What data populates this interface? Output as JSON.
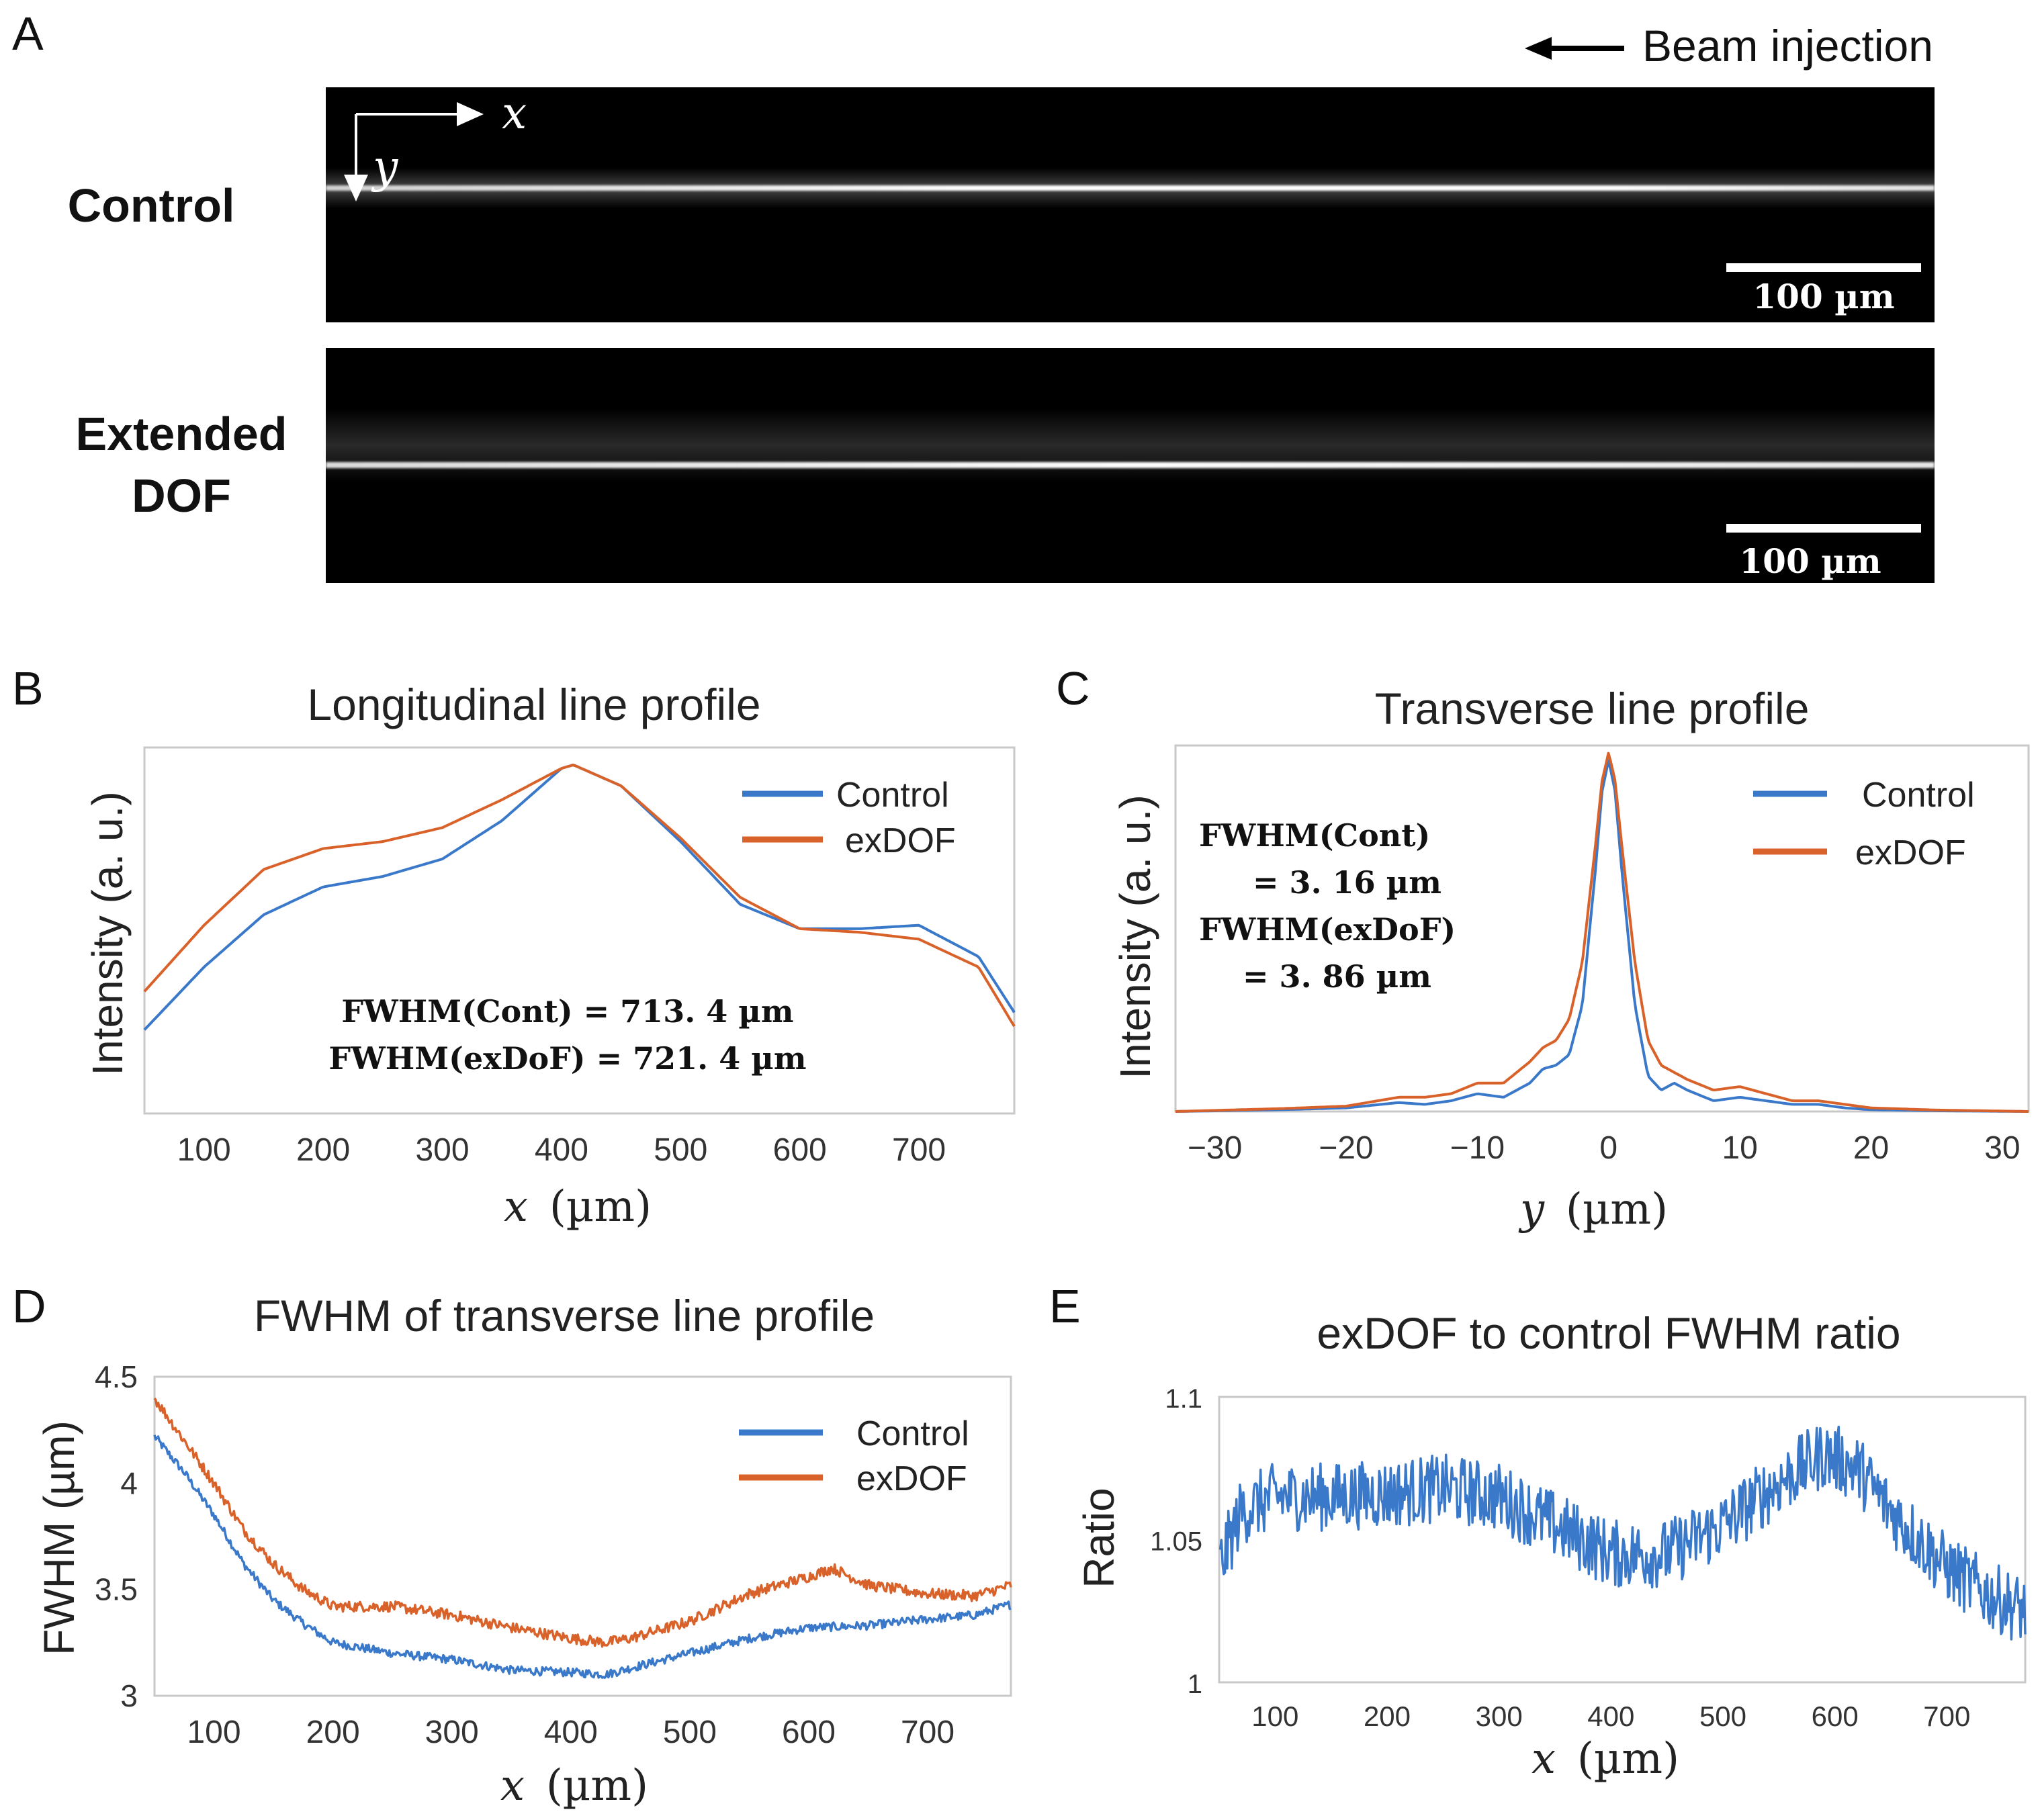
{
  "panel_a": {
    "letter": "A",
    "beam_injection_label": "Beam injection",
    "rows": [
      {
        "label_lines": [
          "Control"
        ],
        "scale_label": "100 µm"
      },
      {
        "label_lines": [
          "Extended",
          "DOF"
        ],
        "scale_label": "100 µm"
      }
    ],
    "axis_x_label": "x",
    "axis_y_label": "y",
    "arrow_icon": "left-arrow-icon"
  },
  "colors": {
    "control": "#3a78c9",
    "exdof": "#d9622a",
    "frame": "#c8c8c8",
    "tick_text": "#333333"
  },
  "chart_data": [
    {
      "id": "B",
      "letter": "B",
      "type": "line",
      "title": "Longitudinal line profile",
      "xlabel_var": "x",
      "xlabel_unit": "(µm)",
      "ylabel": "Intensity (a. u.)",
      "xlim": [
        50,
        780
      ],
      "ylim": [
        0,
        1.05
      ],
      "xticks": [
        100,
        200,
        300,
        400,
        500,
        600,
        700
      ],
      "yticks": [],
      "legend_position": "top-right",
      "annotations": [
        "FWHM(Cont) = 713. 4 µm",
        "FWHM(exDoF) = 721. 4 µm"
      ],
      "series": [
        {
          "name": "Control",
          "color_key": "control",
          "x": [
            50,
            100,
            150,
            200,
            250,
            300,
            350,
            400,
            410,
            450,
            500,
            550,
            600,
            650,
            700,
            750,
            780
          ],
          "y": [
            0.24,
            0.42,
            0.57,
            0.65,
            0.68,
            0.73,
            0.84,
            0.99,
            1.0,
            0.94,
            0.78,
            0.6,
            0.53,
            0.53,
            0.54,
            0.45,
            0.29
          ]
        },
        {
          "name": "exDOF",
          "color_key": "exdof",
          "x": [
            50,
            100,
            150,
            200,
            250,
            300,
            350,
            400,
            410,
            450,
            500,
            550,
            600,
            650,
            700,
            750,
            780
          ],
          "y": [
            0.35,
            0.54,
            0.7,
            0.76,
            0.78,
            0.82,
            0.9,
            0.99,
            1.0,
            0.94,
            0.79,
            0.62,
            0.53,
            0.52,
            0.5,
            0.42,
            0.25
          ]
        }
      ]
    },
    {
      "id": "C",
      "letter": "C",
      "type": "line",
      "title": "Transverse line profile",
      "xlabel_var": "y",
      "xlabel_unit": "(µm)",
      "ylabel": "Intensity (a. u.)",
      "xlim": [
        -33,
        32
      ],
      "ylim": [
        0,
        1.03
      ],
      "xticks": [
        -30,
        -20,
        -10,
        0,
        10,
        20,
        30
      ],
      "xtick_labels": [
        "−30",
        "−20",
        "−10",
        "0",
        "10",
        "20",
        "30"
      ],
      "yticks": [],
      "legend_position": "top-right",
      "annotations": [
        "FWHM(Cont)",
        "= 3. 16 µm",
        "FWHM(exDoF)",
        "= 3. 86 µm"
      ],
      "series": [
        {
          "name": "Control",
          "color_key": "control",
          "x": [
            -33,
            -25,
            -20,
            -16,
            -14,
            -12,
            -10,
            -8,
            -6,
            -5,
            -4,
            -3,
            -2,
            -1,
            -0.5,
            0,
            0.5,
            1,
            2,
            3,
            4,
            5,
            6,
            8,
            10,
            12,
            14,
            16,
            18,
            20,
            25,
            32
          ],
          "y": [
            0.0,
            0.005,
            0.01,
            0.025,
            0.02,
            0.03,
            0.05,
            0.04,
            0.08,
            0.12,
            0.13,
            0.16,
            0.3,
            0.68,
            0.9,
            0.99,
            0.9,
            0.68,
            0.3,
            0.1,
            0.06,
            0.08,
            0.06,
            0.03,
            0.04,
            0.03,
            0.02,
            0.02,
            0.01,
            0.005,
            0.002,
            0.0
          ]
        },
        {
          "name": "exDOF",
          "color_key": "exdof",
          "x": [
            -33,
            -25,
            -20,
            -16,
            -14,
            -12,
            -10,
            -8,
            -6,
            -5,
            -4,
            -3,
            -2,
            -1,
            -0.5,
            0,
            0.5,
            1,
            2,
            3,
            4,
            5,
            6,
            8,
            10,
            12,
            14,
            16,
            18,
            20,
            25,
            32
          ],
          "y": [
            0.0,
            0.008,
            0.015,
            0.04,
            0.04,
            0.05,
            0.08,
            0.08,
            0.14,
            0.18,
            0.2,
            0.26,
            0.42,
            0.75,
            0.93,
            1.01,
            0.93,
            0.75,
            0.42,
            0.2,
            0.13,
            0.11,
            0.09,
            0.06,
            0.07,
            0.05,
            0.03,
            0.03,
            0.02,
            0.01,
            0.004,
            0.0
          ]
        }
      ]
    },
    {
      "id": "D",
      "letter": "D",
      "type": "line",
      "title": "FWHM of transverse line profile",
      "xlabel_var": "x",
      "xlabel_unit": "(µm)",
      "ylabel": "FWHM (µm)",
      "xlim": [
        50,
        770
      ],
      "ylim": [
        3,
        4.5
      ],
      "xticks": [
        100,
        200,
        300,
        400,
        500,
        600,
        700
      ],
      "yticks": [
        3,
        3.5,
        4,
        4.5
      ],
      "ytick_labels": [
        "3",
        "3.5",
        "4",
        "4.5"
      ],
      "legend_position": "top-right",
      "series": [
        {
          "name": "Control",
          "color_key": "control",
          "noise": 0.02,
          "x": [
            50,
            75,
            100,
            125,
            150,
            175,
            200,
            250,
            300,
            350,
            400,
            430,
            450,
            500,
            550,
            600,
            650,
            700,
            740,
            770
          ],
          "y": [
            4.22,
            4.05,
            3.85,
            3.62,
            3.45,
            3.34,
            3.25,
            3.2,
            3.17,
            3.12,
            3.11,
            3.1,
            3.13,
            3.2,
            3.27,
            3.32,
            3.33,
            3.36,
            3.38,
            3.43
          ]
        },
        {
          "name": "exDOF",
          "color_key": "exdof",
          "noise": 0.025,
          "x": [
            50,
            75,
            100,
            125,
            150,
            175,
            200,
            250,
            300,
            350,
            400,
            430,
            450,
            500,
            550,
            600,
            620,
            650,
            700,
            740,
            770
          ],
          "y": [
            4.4,
            4.2,
            4.0,
            3.78,
            3.62,
            3.5,
            3.42,
            3.42,
            3.38,
            3.32,
            3.27,
            3.25,
            3.27,
            3.35,
            3.48,
            3.56,
            3.6,
            3.52,
            3.48,
            3.47,
            3.52
          ]
        }
      ]
    },
    {
      "id": "E",
      "letter": "E",
      "type": "line",
      "title": "exDOF to control FWHM ratio",
      "xlabel_var": "x",
      "xlabel_unit": "(µm)",
      "ylabel": "Ratio",
      "xlim": [
        50,
        770
      ],
      "ylim": [
        1,
        1.1
      ],
      "xticks": [
        100,
        200,
        300,
        400,
        500,
        600,
        700
      ],
      "yticks": [
        1,
        1.05,
        1.1
      ],
      "ytick_labels": [
        "1",
        "1.05",
        "1.1"
      ],
      "legend_position": "none",
      "series": [
        {
          "name": "",
          "color_key": "control",
          "noise": 0.012,
          "x": [
            50,
            70,
            100,
            150,
            200,
            250,
            300,
            350,
            400,
            450,
            500,
            550,
            590,
            620,
            650,
            700,
            740,
            770
          ],
          "y": [
            1.04,
            1.06,
            1.065,
            1.065,
            1.066,
            1.068,
            1.065,
            1.055,
            1.045,
            1.045,
            1.055,
            1.07,
            1.08,
            1.075,
            1.06,
            1.04,
            1.03,
            1.025
          ]
        }
      ]
    }
  ]
}
